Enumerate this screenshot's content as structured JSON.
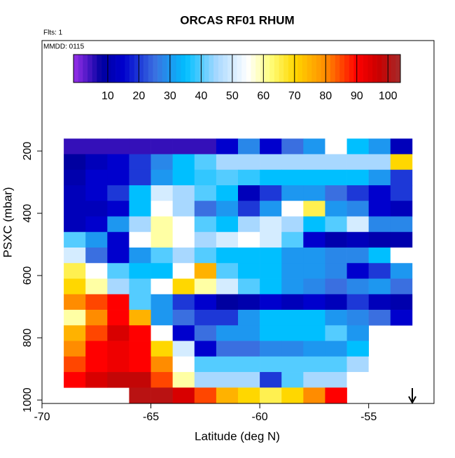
{
  "chart_data": {
    "type": "heatmap",
    "title": "ORCAS RF01 RHUM",
    "annotations": [
      "Flts: 1",
      "MMDD: 0115"
    ],
    "x_label": "Latitude (deg N)",
    "y_label": "PSXC (mbar)",
    "xlim": [
      -70,
      -52
    ],
    "xticks": [
      -70,
      -65,
      -60,
      -55
    ],
    "ylim": [
      1011,
      -155
    ],
    "yticks": [
      200,
      400,
      600,
      800,
      1000
    ],
    "zlim": [
      -1,
      104
    ],
    "colorbar_ticks": [
      10,
      20,
      30,
      40,
      50,
      60,
      70,
      80,
      90,
      100
    ],
    "colorscale": [
      [
        0,
        "#8a2be2"
      ],
      [
        8,
        "#0000a0"
      ],
      [
        15,
        "#0000cd"
      ],
      [
        25,
        "#3a6fe0"
      ],
      [
        35,
        "#00bfff"
      ],
      [
        45,
        "#a8d8ff"
      ],
      [
        55,
        "#ffffff"
      ],
      [
        62,
        "#ffff80"
      ],
      [
        70,
        "#ffd700"
      ],
      [
        80,
        "#ff8c00"
      ],
      [
        90,
        "#ff0000"
      ],
      [
        97,
        "#c80000"
      ],
      [
        104,
        "#a52a2a"
      ]
    ],
    "xbins": [
      -69,
      -68,
      -67,
      -66,
      -65,
      -64,
      -63,
      -62,
      -61,
      -60,
      -59,
      -58,
      -57,
      -56,
      -55,
      -54,
      -53
    ],
    "ybins": [
      160,
      210,
      260,
      310,
      360,
      410,
      460,
      510,
      560,
      610,
      660,
      710,
      760,
      810,
      860,
      910,
      960,
      1010
    ],
    "values": [
      [
        5,
        5,
        5,
        5,
        5,
        5,
        5,
        15,
        28,
        15,
        25,
        30,
        55,
        35,
        30,
        12
      ],
      [
        8,
        12,
        15,
        20,
        28,
        35,
        40,
        45,
        45,
        45,
        45,
        45,
        45,
        45,
        45,
        70
      ],
      [
        10,
        15,
        15,
        20,
        30,
        35,
        38,
        40,
        38,
        35,
        35,
        35,
        35,
        35,
        30,
        20
      ],
      [
        12,
        15,
        20,
        35,
        50,
        45,
        40,
        35,
        12,
        20,
        30,
        30,
        25,
        20,
        15,
        20
      ],
      [
        12,
        12,
        15,
        35,
        55,
        45,
        25,
        30,
        20,
        30,
        55,
        65,
        30,
        28,
        15,
        12
      ],
      [
        12,
        15,
        30,
        45,
        60,
        55,
        40,
        35,
        45,
        50,
        45,
        35,
        40,
        50,
        28,
        28
      ],
      [
        40,
        30,
        15,
        55,
        60,
        55,
        45,
        50,
        55,
        50,
        40,
        15,
        10,
        12,
        10,
        10
      ],
      [
        50,
        25,
        15,
        30,
        40,
        45,
        40,
        35,
        35,
        35,
        30,
        30,
        28,
        28,
        35,
        55
      ],
      [
        65,
        55,
        40,
        35,
        35,
        55,
        75,
        40,
        35,
        35,
        30,
        30,
        28,
        15,
        20,
        30
      ],
      [
        70,
        60,
        45,
        40,
        55,
        70,
        60,
        50,
        40,
        35,
        30,
        28,
        25,
        28,
        30,
        25
      ],
      [
        80,
        85,
        90,
        40,
        30,
        20,
        15,
        8,
        10,
        15,
        12,
        15,
        12,
        20,
        12,
        10
      ],
      [
        60,
        80,
        90,
        75,
        30,
        25,
        20,
        20,
        30,
        35,
        35,
        35,
        30,
        28,
        25,
        15
      ],
      [
        75,
        85,
        95,
        90,
        55,
        15,
        25,
        30,
        30,
        35,
        35,
        35,
        40,
        30,
        null,
        null
      ],
      [
        80,
        90,
        92,
        90,
        70,
        50,
        15,
        25,
        25,
        28,
        28,
        30,
        30,
        35,
        null,
        null
      ],
      [
        85,
        90,
        92,
        90,
        80,
        55,
        40,
        40,
        40,
        40,
        40,
        40,
        40,
        45,
        55,
        null
      ],
      [
        90,
        95,
        98,
        98,
        85,
        60,
        45,
        45,
        45,
        20,
        40,
        45,
        45,
        55,
        null,
        null
      ],
      [
        null,
        null,
        null,
        100,
        100,
        95,
        85,
        75,
        70,
        65,
        70,
        80,
        90,
        null,
        null,
        null
      ]
    ]
  }
}
